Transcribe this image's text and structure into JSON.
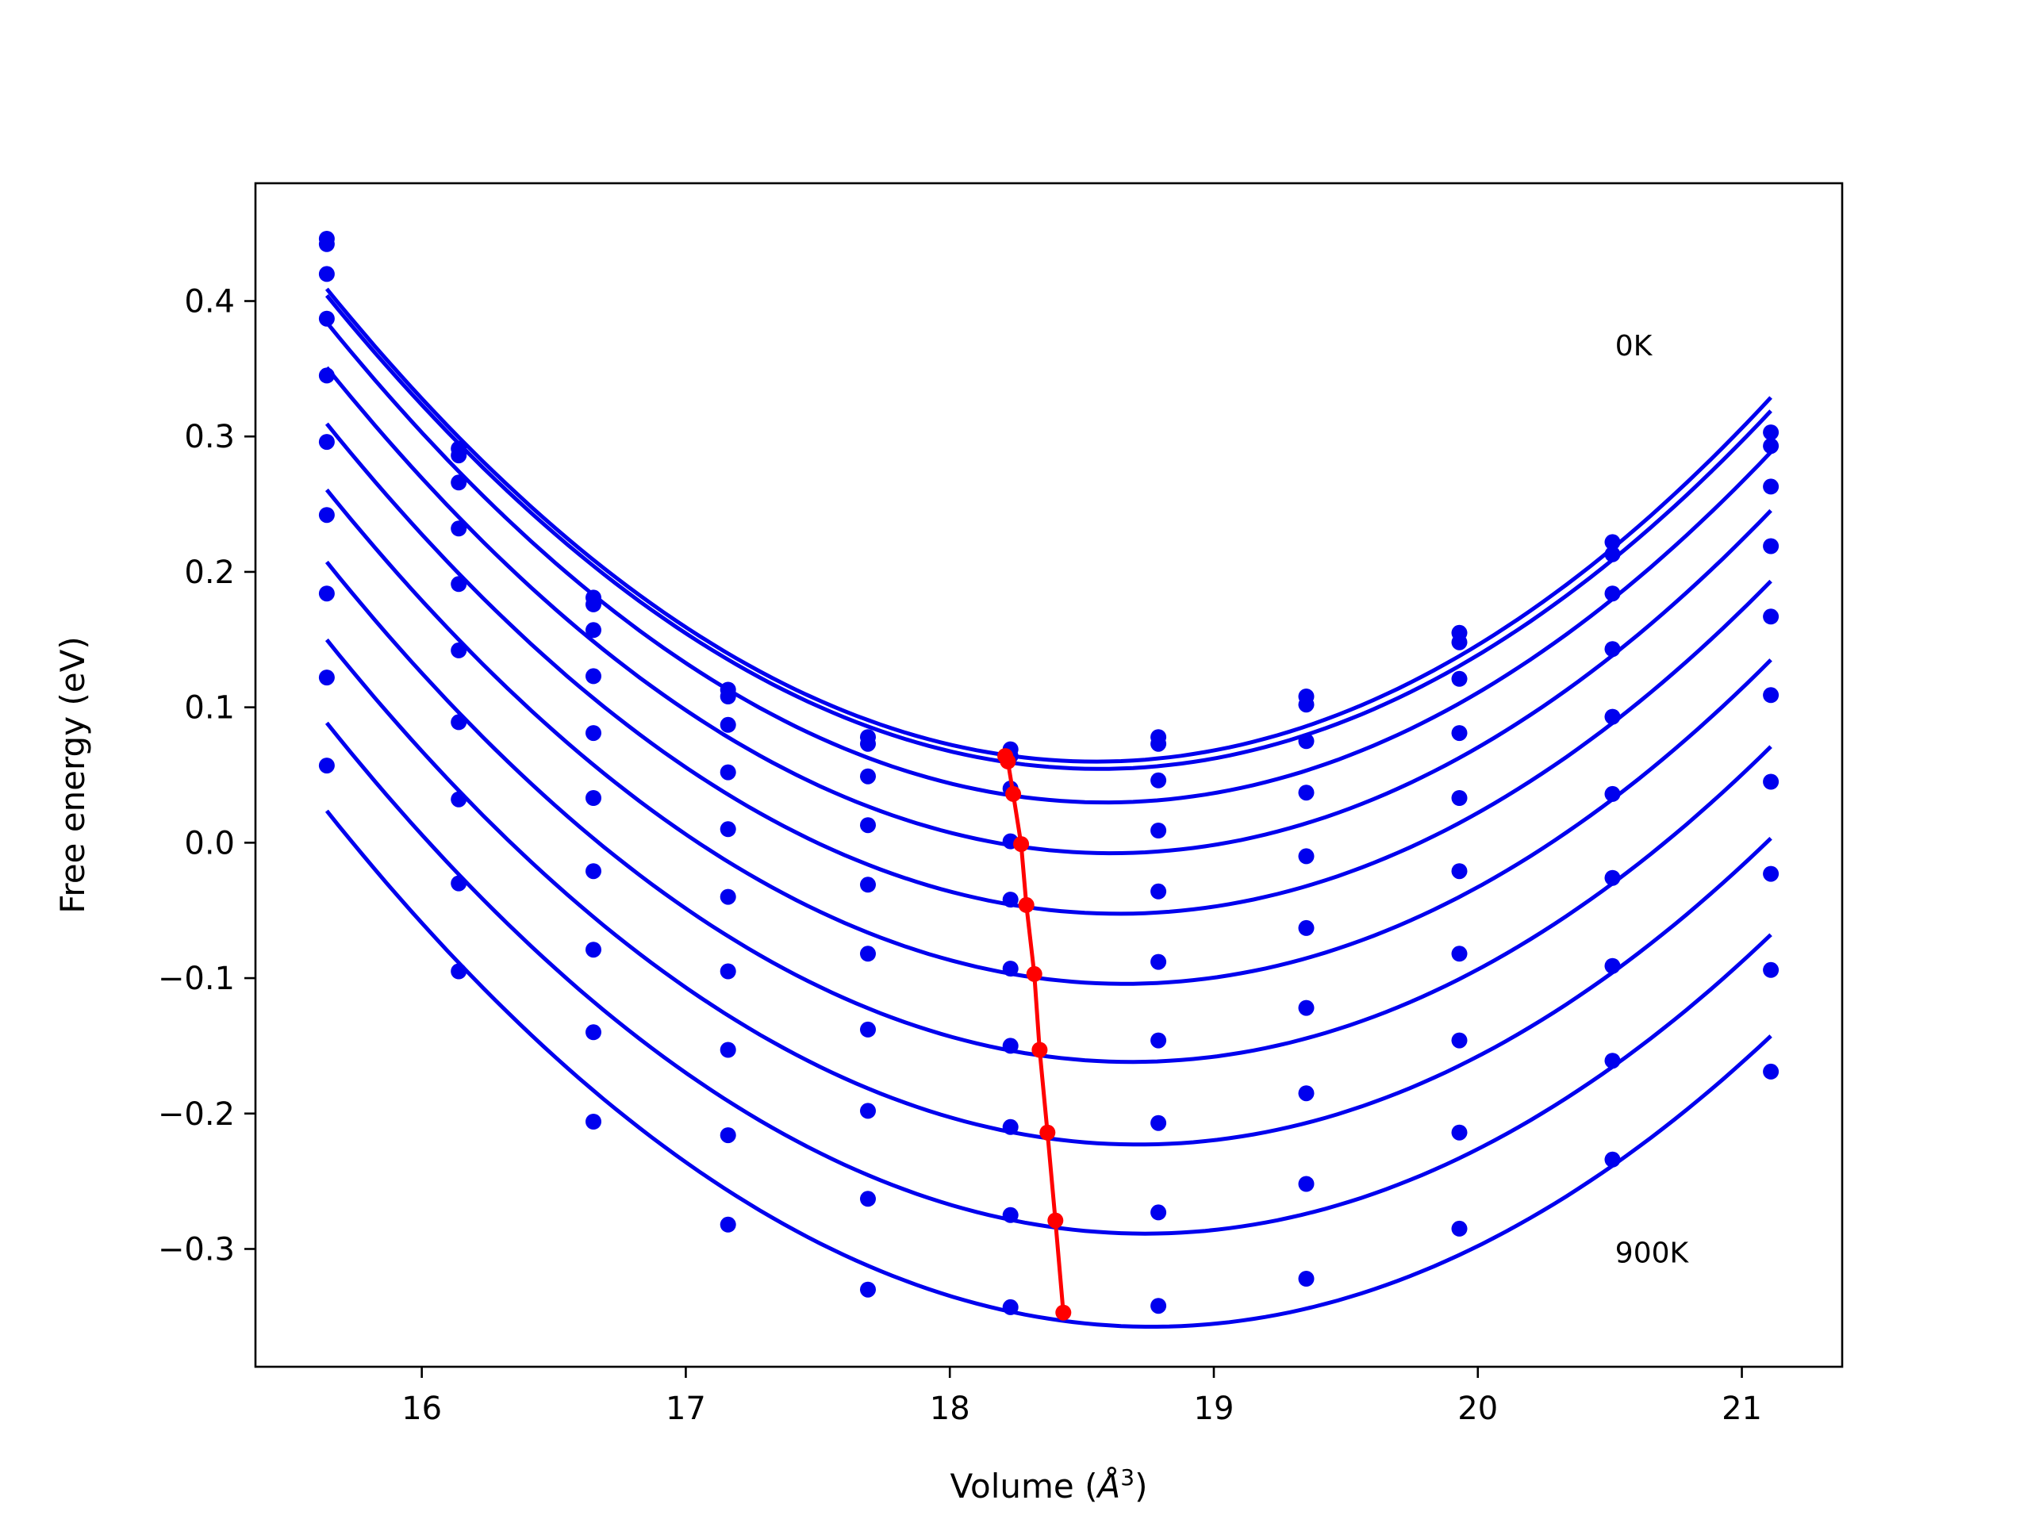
{
  "chart_data": {
    "type": "line",
    "title": "",
    "xlabel": "Volume (",
    "xlabel_symbol": "Å",
    "xlabel_exponent": "3",
    "xlabel_close": ")",
    "ylabel": "Free energy (eV)",
    "xlim": [
      15.37,
      21.38
    ],
    "ylim": [
      -0.387,
      0.487
    ],
    "xticks": [
      16,
      17,
      18,
      19,
      20,
      21
    ],
    "xtick_labels": [
      "16",
      "17",
      "18",
      "19",
      "20",
      "21"
    ],
    "yticks": [
      -0.3,
      -0.2,
      -0.1,
      0.0,
      0.1,
      0.2,
      0.3,
      0.4
    ],
    "ytick_labels": [
      "−0.3",
      "−0.2",
      "−0.1",
      "0.0",
      "0.1",
      "0.2",
      "0.3",
      "0.4"
    ],
    "grid": false,
    "legend": "none",
    "colors": {
      "curves": "#0000ee",
      "minima": "#ff0000"
    },
    "annotations": [
      {
        "text": "0K",
        "x": 20.52,
        "y": 0.36
      },
      {
        "text": "900K",
        "x": 20.52,
        "y": -0.31
      }
    ],
    "volumes": [
      15.64,
      16.14,
      16.65,
      17.16,
      17.69,
      18.23,
      18.79,
      19.35,
      19.93,
      20.51,
      21.11
    ],
    "series": [
      {
        "points": [
          0.446,
          0.291,
          0.181,
          0.113,
          0.078,
          0.069,
          0.078,
          0.108,
          0.155,
          0.222,
          0.303
        ],
        "fit_min_v": 18.21,
        "fit_min_f": 0.064
      },
      {
        "points": [
          0.442,
          0.286,
          0.176,
          0.108,
          0.073,
          0.064,
          0.073,
          0.102,
          0.148,
          0.213,
          0.293
        ],
        "fit_min_v": 18.22,
        "fit_min_f": 0.06
      },
      {
        "points": [
          0.42,
          0.266,
          0.157,
          0.087,
          0.049,
          0.04,
          0.046,
          0.075,
          0.121,
          0.184,
          0.263
        ],
        "fit_min_v": 18.24,
        "fit_min_f": 0.036
      },
      {
        "points": [
          0.387,
          0.232,
          0.123,
          0.052,
          0.013,
          0.001,
          0.009,
          0.037,
          0.081,
          0.143,
          0.219
        ],
        "fit_min_v": 18.27,
        "fit_min_f": -0.001
      },
      {
        "points": [
          0.345,
          0.191,
          0.081,
          0.01,
          -0.031,
          -0.042,
          -0.036,
          -0.01,
          0.033,
          0.093,
          0.167
        ],
        "fit_min_v": 18.29,
        "fit_min_f": -0.046
      },
      {
        "points": [
          0.296,
          0.142,
          0.033,
          -0.04,
          -0.082,
          -0.093,
          -0.088,
          -0.063,
          -0.021,
          0.036,
          0.109
        ],
        "fit_min_v": 18.32,
        "fit_min_f": -0.097
      },
      {
        "points": [
          0.242,
          0.089,
          -0.021,
          -0.095,
          -0.138,
          -0.15,
          -0.146,
          -0.122,
          -0.082,
          -0.026,
          0.045
        ],
        "fit_min_v": 18.34,
        "fit_min_f": -0.153
      },
      {
        "points": [
          0.184,
          0.032,
          -0.079,
          -0.153,
          -0.198,
          -0.21,
          -0.207,
          -0.185,
          -0.146,
          -0.091,
          -0.023
        ],
        "fit_min_v": 18.37,
        "fit_min_f": -0.214
      },
      {
        "points": [
          0.122,
          -0.03,
          -0.14,
          -0.216,
          -0.263,
          -0.275,
          -0.273,
          -0.252,
          -0.214,
          -0.161,
          -0.094
        ],
        "fit_min_v": 18.4,
        "fit_min_f": -0.279
      },
      {
        "points": [
          0.057,
          -0.095,
          -0.206,
          -0.282,
          -0.33,
          -0.343,
          -0.342,
          -0.322,
          -0.285,
          -0.234,
          -0.169
        ],
        "fit_min_v": 18.43,
        "fit_min_f": -0.347
      }
    ]
  }
}
